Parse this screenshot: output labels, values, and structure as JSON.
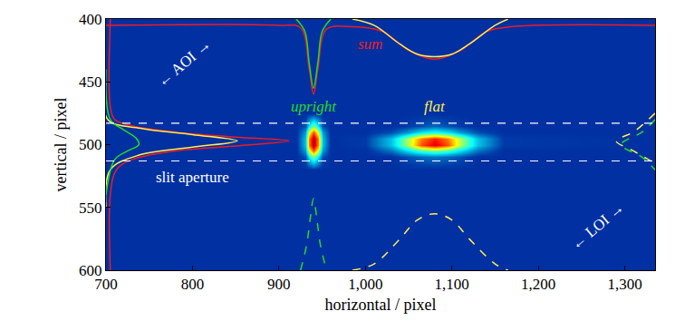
{
  "chart_data": {
    "type": "heatmap",
    "x_label": "horizontal / pixel",
    "y_label": "vertical / pixel",
    "xlim": [
      700,
      1335
    ],
    "ylim": [
      600,
      400
    ],
    "xticks": [
      700,
      800,
      900,
      {
        "value": 1000,
        "label": "1,000"
      },
      {
        "value": 1100,
        "label": "1,100"
      },
      {
        "value": 1200,
        "label": "1,200"
      },
      {
        "value": 1300,
        "label": "1,300"
      }
    ],
    "yticks": [
      400,
      450,
      500,
      550,
      600
    ],
    "heatmap": {
      "x": [
        700,
        920,
        930,
        935,
        940,
        945,
        950,
        960,
        1000,
        1030,
        1050,
        1065,
        1080,
        1095,
        1110,
        1130,
        1160,
        1330
      ],
      "y": [
        400,
        475,
        485,
        490,
        495,
        500,
        505,
        510,
        520,
        600
      ],
      "z": [
        [
          0.1,
          0.1,
          0.1,
          0.1,
          0.1,
          0.1,
          0.1,
          0.1,
          0.1,
          0.1,
          0.1,
          0.1,
          0.1,
          0.1,
          0.1,
          0.1,
          0.1,
          0.1
        ],
        [
          0.1,
          0.1,
          0.1,
          0.1,
          0.1,
          0.1,
          0.1,
          0.1,
          0.1,
          0.1,
          0.1,
          0.1,
          0.1,
          0.1,
          0.1,
          0.1,
          0.1,
          0.1
        ],
        [
          0.1,
          0.1,
          0.15,
          0.35,
          0.5,
          0.35,
          0.15,
          0.1,
          0.1,
          0.1,
          0.12,
          0.15,
          0.18,
          0.15,
          0.12,
          0.1,
          0.1,
          0.1
        ],
        [
          0.1,
          0.1,
          0.25,
          0.6,
          0.8,
          0.6,
          0.25,
          0.1,
          0.1,
          0.15,
          0.25,
          0.35,
          0.4,
          0.35,
          0.25,
          0.15,
          0.1,
          0.1
        ],
        [
          0.1,
          0.1,
          0.3,
          0.75,
          0.95,
          0.75,
          0.3,
          0.1,
          0.12,
          0.3,
          0.55,
          0.75,
          0.85,
          0.75,
          0.55,
          0.3,
          0.12,
          0.1
        ],
        [
          0.1,
          0.1,
          0.3,
          0.75,
          0.95,
          0.75,
          0.3,
          0.1,
          0.12,
          0.3,
          0.55,
          0.8,
          0.9,
          0.8,
          0.55,
          0.3,
          0.12,
          0.1
        ],
        [
          0.1,
          0.1,
          0.25,
          0.6,
          0.8,
          0.6,
          0.25,
          0.1,
          0.1,
          0.2,
          0.35,
          0.45,
          0.5,
          0.45,
          0.35,
          0.2,
          0.1,
          0.1
        ],
        [
          0.1,
          0.1,
          0.15,
          0.35,
          0.5,
          0.35,
          0.15,
          0.1,
          0.1,
          0.1,
          0.15,
          0.18,
          0.2,
          0.18,
          0.15,
          0.1,
          0.1,
          0.1
        ],
        [
          0.1,
          0.1,
          0.1,
          0.1,
          0.1,
          0.1,
          0.1,
          0.1,
          0.1,
          0.1,
          0.1,
          0.1,
          0.1,
          0.1,
          0.1,
          0.1,
          0.1,
          0.1
        ],
        [
          0.1,
          0.1,
          0.1,
          0.1,
          0.1,
          0.1,
          0.1,
          0.1,
          0.1,
          0.1,
          0.1,
          0.1,
          0.1,
          0.1,
          0.1,
          0.1,
          0.1,
          0.1
        ]
      ],
      "zlim": [
        0,
        1
      ]
    },
    "series": [
      {
        "type": "line",
        "color": "#ee1c24",
        "line_style": "solid",
        "x": [
          700,
          900,
          925,
          935,
          940,
          945,
          955,
          980,
          1020,
          1050,
          1080,
          1110,
          1140,
          1170,
          1335
        ],
        "y": [
          405,
          405,
          407,
          440,
          460,
          440,
          408,
          406,
          410,
          425,
          432,
          425,
          410,
          406,
          405
        ]
      },
      {
        "type": "line",
        "color": "#22dd22",
        "line_style": "solid",
        "x": [
          920,
          930,
          935,
          940,
          945,
          950,
          960
        ],
        "y": [
          400,
          410,
          435,
          455,
          435,
          410,
          400
        ]
      },
      {
        "type": "line",
        "color": "#ffee55",
        "line_style": "solid",
        "x": [
          985,
          1010,
          1040,
          1060,
          1080,
          1100,
          1120,
          1150,
          1165
        ],
        "y": [
          400,
          405,
          420,
          428,
          430,
          428,
          420,
          405,
          400
        ]
      },
      {
        "type": "line",
        "color": "#ee1c24",
        "line_style": "solid",
        "x": [
          705,
          705,
          710,
          730,
          780,
          850,
          912,
          850,
          780,
          730,
          712,
          705,
          705
        ],
        "y": [
          400,
          470,
          480,
          485,
          490,
          494,
          497,
          501,
          505,
          512,
          520,
          540,
          600
        ]
      },
      {
        "type": "line",
        "color": "#ffee55",
        "line_style": "solid",
        "x": [
          700,
          702,
          740,
          800,
          852,
          800,
          740,
          705,
          700
        ],
        "y": [
          450,
          480,
          487,
          492,
          497,
          502,
          508,
          520,
          550
        ]
      },
      {
        "type": "line",
        "color": "#22dd22",
        "line_style": "solid",
        "x": [
          700,
          705,
          720,
          735,
          738,
          725,
          710,
          700
        ],
        "y": [
          440,
          480,
          488,
          495,
          500,
          505,
          512,
          540
        ]
      },
      {
        "type": "line",
        "color": "#22dd22",
        "line_style": "dashed",
        "x": [
          925,
          932,
          936,
          940,
          944,
          948,
          955
        ],
        "y": [
          600,
          580,
          560,
          543,
          560,
          580,
          600
        ]
      },
      {
        "type": "line",
        "color": "#ffee55",
        "line_style": "dashed",
        "x": [
          985,
          1010,
          1040,
          1060,
          1080,
          1100,
          1120,
          1150,
          1165
        ],
        "y": [
          600,
          595,
          575,
          560,
          555,
          560,
          575,
          595,
          600
        ]
      },
      {
        "type": "line",
        "color": "#22dd22",
        "line_style": "dashed",
        "x": [
          1335,
          1320,
          1300,
          1295,
          1300,
          1320,
          1335
        ],
        "y": [
          480,
          490,
          497,
          500,
          503,
          510,
          520
        ]
      },
      {
        "type": "line",
        "color": "#ffee55",
        "line_style": "dashed",
        "x": [
          1335,
          1310,
          1290,
          1310,
          1335
        ],
        "y": [
          475,
          490,
          497,
          505,
          515
        ]
      }
    ],
    "hlines": [
      483,
      513
    ],
    "hline_color": "#ffffff",
    "annotations": [
      {
        "text": "sum",
        "x": 1005,
        "y": 420,
        "color": "#ee1c24"
      },
      {
        "text": "upright",
        "x": 940,
        "y": 470,
        "color": "#22dd22"
      },
      {
        "text": "flat",
        "x": 1080,
        "y": 470,
        "color": "#ffee55"
      },
      {
        "text": "slit aperture",
        "x": 800,
        "y": 526,
        "color": "#ffffff"
      },
      {
        "text": "← AOI →",
        "x": 790,
        "y": 435,
        "color": "#ffffff"
      },
      {
        "text": "← LOI →",
        "x": 1268,
        "y": 565,
        "color": "#ffffff"
      }
    ]
  }
}
